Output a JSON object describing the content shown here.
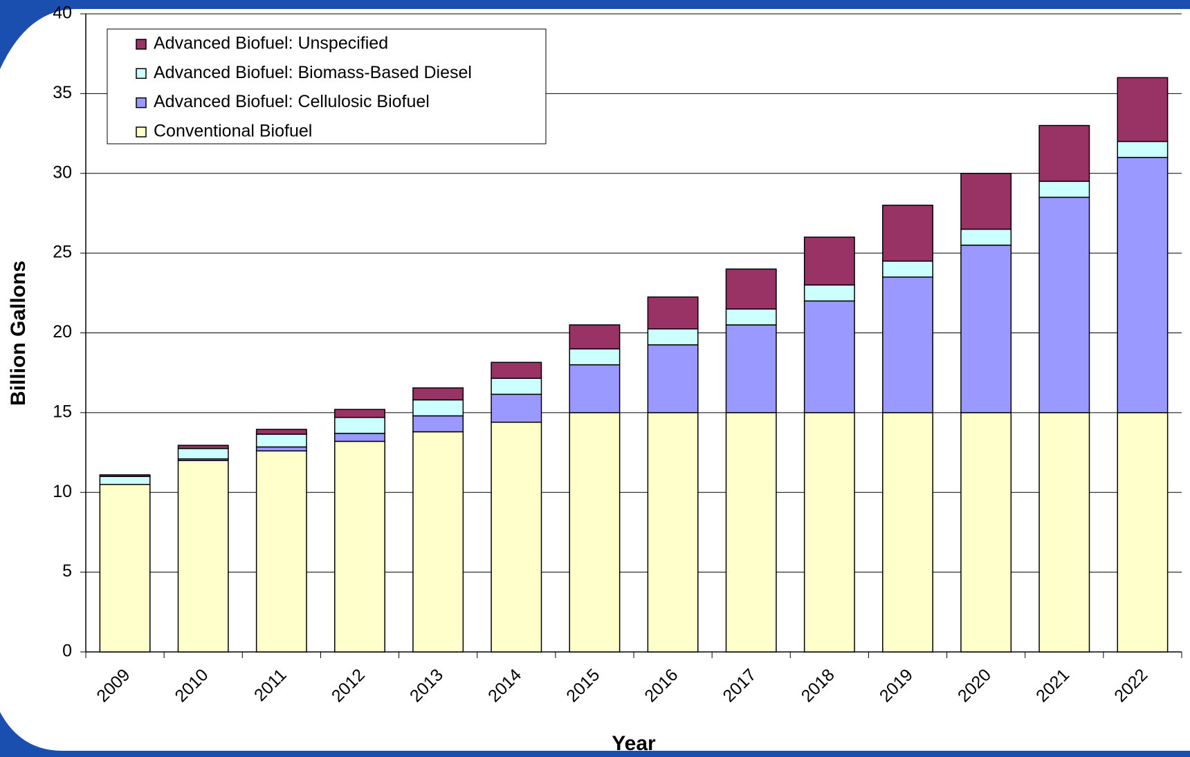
{
  "chart_data": {
    "type": "stacked_bar",
    "x_label": "Year",
    "y_label": "Billion Gallons",
    "categories": [
      "2009",
      "2010",
      "2011",
      "2012",
      "2013",
      "2014",
      "2015",
      "2016",
      "2017",
      "2018",
      "2019",
      "2020",
      "2021",
      "2022"
    ],
    "series": [
      {
        "name": "Conventional Biofuel",
        "color": "#ffffcc",
        "values": [
          10.5,
          12.0,
          12.6,
          13.2,
          13.8,
          14.4,
          15,
          15,
          15,
          15,
          15,
          15,
          15,
          15
        ]
      },
      {
        "name": "Advanced Biofuel: Cellulosic Biofuel",
        "color": "#9999ff",
        "values": [
          0,
          0.1,
          0.25,
          0.5,
          1.0,
          1.75,
          3.0,
          4.25,
          5.5,
          7.0,
          8.5,
          10.5,
          13.5,
          16
        ]
      },
      {
        "name": "Advanced Biofuel: Biomass-Based Diesel",
        "color": "#ccffff",
        "values": [
          0.5,
          0.65,
          0.8,
          1.0,
          1.0,
          1.0,
          1.0,
          1.0,
          1.0,
          1.0,
          1.0,
          1.0,
          1.0,
          1.0
        ]
      },
      {
        "name": "Advanced Biofuel: Unspecified",
        "color": "#993366",
        "values": [
          0.1,
          0.2,
          0.3,
          0.5,
          0.75,
          1.0,
          1.5,
          2.0,
          2.5,
          3.0,
          3.5,
          3.5,
          3.5,
          4.0
        ]
      }
    ],
    "ylim": [
      0,
      40
    ],
    "yticks": [
      0,
      5,
      10,
      15,
      20,
      25,
      30,
      35,
      40
    ],
    "grid": true,
    "legend": "upper left"
  }
}
